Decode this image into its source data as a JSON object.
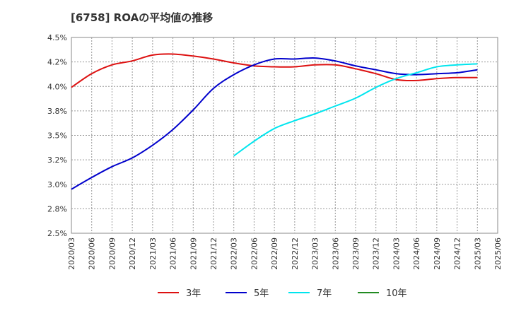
{
  "chart_data": {
    "type": "line",
    "title": "[6758]  ROAの平均値の推移",
    "xlabel": "",
    "ylabel": "",
    "ylim": [
      2.5,
      4.5
    ],
    "y_ticks": [
      "4.5%",
      "4.2%",
      "4.0%",
      "3.8%",
      "3.5%",
      "3.2%",
      "3.0%",
      "2.8%",
      "2.5%"
    ],
    "y_tick_values": [
      4.5,
      4.25,
      4.0,
      3.75,
      3.5,
      3.25,
      3.0,
      2.75,
      2.5
    ],
    "categories": [
      "2020/03",
      "2020/06",
      "2020/09",
      "2020/12",
      "2021/03",
      "2021/06",
      "2021/09",
      "2021/12",
      "2022/03",
      "2022/06",
      "2022/09",
      "2022/12",
      "2023/03",
      "2023/06",
      "2023/09",
      "2023/12",
      "2024/03",
      "2024/06",
      "2024/09",
      "2024/12",
      "2025/03",
      "2025/06"
    ],
    "grid": true,
    "series": [
      {
        "name": "3年",
        "color": "#dd1111",
        "values": [
          3.99,
          4.13,
          4.22,
          4.26,
          4.32,
          4.33,
          4.31,
          4.28,
          4.24,
          4.21,
          4.2,
          4.2,
          4.22,
          4.22,
          4.18,
          4.13,
          4.07,
          4.06,
          4.08,
          4.09,
          4.09,
          null
        ]
      },
      {
        "name": "5年",
        "color": "#0000cc",
        "values": [
          2.95,
          3.07,
          3.18,
          3.27,
          3.4,
          3.56,
          3.76,
          3.98,
          4.12,
          4.22,
          4.28,
          4.28,
          4.29,
          4.26,
          4.21,
          4.17,
          4.13,
          4.12,
          4.13,
          4.14,
          4.17,
          null
        ]
      },
      {
        "name": "7年",
        "color": "#00e5ee",
        "values": [
          null,
          null,
          null,
          null,
          null,
          null,
          null,
          null,
          3.29,
          3.44,
          3.57,
          3.65,
          3.72,
          3.8,
          3.88,
          3.99,
          4.08,
          4.14,
          4.2,
          4.22,
          4.23,
          null
        ]
      },
      {
        "name": "10年",
        "color": "#228b22",
        "values": [
          null,
          null,
          null,
          null,
          null,
          null,
          null,
          null,
          null,
          null,
          null,
          null,
          null,
          null,
          null,
          null,
          null,
          null,
          null,
          null,
          null,
          null
        ]
      }
    ],
    "legend_position": "bottom"
  }
}
